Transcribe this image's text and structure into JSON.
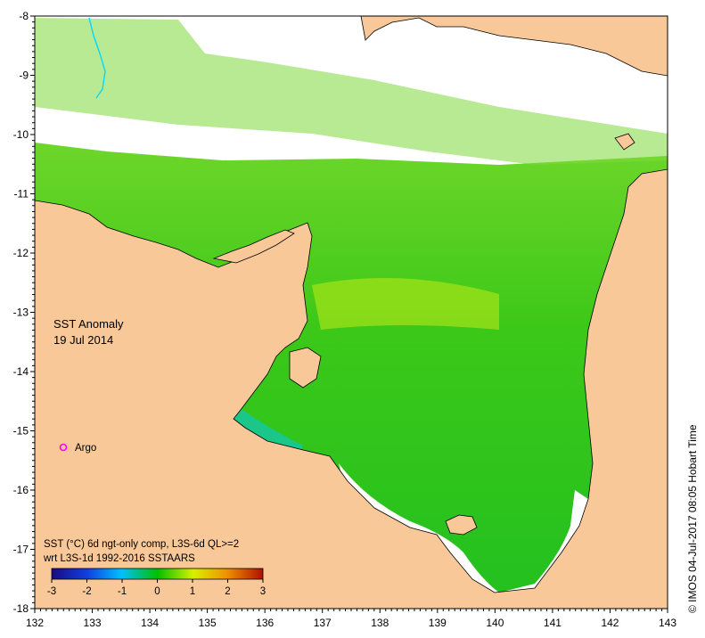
{
  "map": {
    "title_line1": "SST Anomaly",
    "title_line2": "19 Jul 2014",
    "marker_label": "Argo",
    "info_line1": "SST (°C) 6d ngt-only comp, L3S-6d QL>=2",
    "info_line2": "wrt L3S-1d 1992-2016 SSTAARS",
    "credit": "© IMOS 04-Jul-2017 08:05 Hobart Time",
    "x_ticks": [
      "132",
      "133",
      "134",
      "135",
      "136",
      "137",
      "138",
      "139",
      "140",
      "141",
      "142",
      "143"
    ],
    "y_ticks": [
      "-8",
      "-9",
      "-10",
      "-11",
      "-12",
      "-13",
      "-14",
      "-15",
      "-16",
      "-17",
      "-18"
    ],
    "colorbar_ticks": [
      "-3",
      "-2",
      "-1",
      "0",
      "1",
      "2",
      "3"
    ],
    "colors": {
      "land": "#f8c898",
      "no_data": "#ffffff",
      "anomaly_neg_3": "#1a0a80",
      "anomaly_neg_1": "#00c0ff",
      "anomaly_0": "#00c000",
      "anomaly_pos_1": "#d8f000",
      "anomaly_pos_3": "#b01000",
      "argo_marker": "#ff00ff",
      "river": "#00d8ff"
    }
  }
}
